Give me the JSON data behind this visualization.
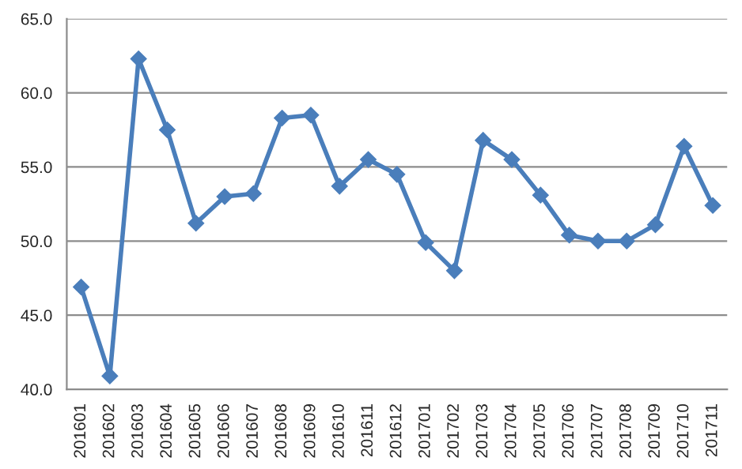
{
  "chart_data": {
    "type": "line",
    "categories": [
      "201601",
      "201602",
      "201603",
      "201604",
      "201605",
      "201606",
      "201607",
      "201608",
      "201609",
      "201610",
      "201611",
      "201612",
      "201701",
      "201702",
      "201703",
      "201704",
      "201705",
      "201706",
      "201707",
      "201708",
      "201709",
      "201710",
      "201711"
    ],
    "series": [
      {
        "color": "#4a7ebb",
        "values": [
          46.9,
          40.9,
          62.3,
          57.5,
          51.2,
          53.0,
          53.2,
          58.3,
          58.5,
          53.7,
          55.5,
          54.5,
          49.9,
          48.0,
          56.8,
          55.5,
          53.1,
          50.4,
          50.0,
          50.0,
          51.1,
          56.4,
          52.4
        ]
      }
    ],
    "ylim": [
      40,
      65
    ],
    "yticks": [
      {
        "value": 40,
        "label": "40.0"
      },
      {
        "value": 45,
        "label": "45.0"
      },
      {
        "value": 50,
        "label": "50.0"
      },
      {
        "value": 55,
        "label": "55.0"
      },
      {
        "value": 60,
        "label": "60.0"
      },
      {
        "value": 65,
        "label": "65.0"
      }
    ],
    "grid": "y",
    "marker": "diamond",
    "line_style": "solid",
    "legend": false
  }
}
